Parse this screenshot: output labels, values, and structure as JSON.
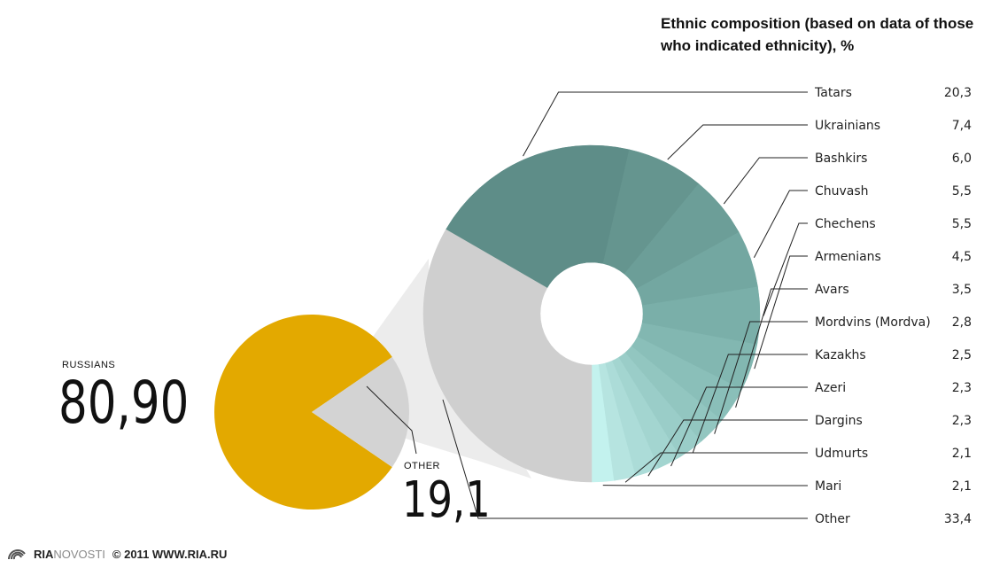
{
  "chart_data": {
    "type": "pie",
    "title": "Ethnic composition (based on data of those who indicated ethnicity), %",
    "main": {
      "russians_label": "RUSSIANS",
      "russians_value": "80,90",
      "other_label": "OTHER",
      "other_value": "19,1",
      "values": [
        80.9,
        19.1
      ],
      "colors": [
        "#e3a900",
        "#d3d3d3"
      ]
    },
    "breakdown": [
      {
        "name": "Tatars",
        "value": 20.3,
        "display": "20,3",
        "color": "#5e8d88"
      },
      {
        "name": "Ukrainians",
        "value": 7.4,
        "display": "7,4",
        "color": "#65958f"
      },
      {
        "name": "Bashkirs",
        "value": 6.0,
        "display": "6,0",
        "color": "#6c9e98"
      },
      {
        "name": "Chuvash",
        "value": 5.5,
        "display": "5,5",
        "color": "#73a7a1"
      },
      {
        "name": "Chechens",
        "value": 5.5,
        "display": "5,5",
        "color": "#7aafa9"
      },
      {
        "name": "Armenians",
        "value": 4.5,
        "display": "4,5",
        "color": "#82b7b1"
      },
      {
        "name": "Avars",
        "value": 3.5,
        "display": "3,5",
        "color": "#8abfb9"
      },
      {
        "name": "Mordvins (Mordva)",
        "value": 2.8,
        "display": "2,8",
        "color": "#92c6c0"
      },
      {
        "name": "Kazakhs",
        "value": 2.5,
        "display": "2,5",
        "color": "#9acdc8"
      },
      {
        "name": "Azeri",
        "value": 2.3,
        "display": "2,3",
        "color": "#a3d5d0"
      },
      {
        "name": "Dargins",
        "value": 2.3,
        "display": "2,3",
        "color": "#acdcd8"
      },
      {
        "name": "Udmurts",
        "value": 2.1,
        "display": "2,1",
        "color": "#b6e4e0"
      },
      {
        "name": "Mari",
        "value": 2.1,
        "display": "2,1",
        "color": "#c3f2ee"
      },
      {
        "name": "Other",
        "value": 33.4,
        "display": "33,4",
        "color": "#cfcfcf"
      }
    ]
  },
  "footer": {
    "brand_bold": "RIA",
    "brand_light": "NOVOSTI",
    "copyright": "© 2011 WWW.RIA.RU"
  }
}
